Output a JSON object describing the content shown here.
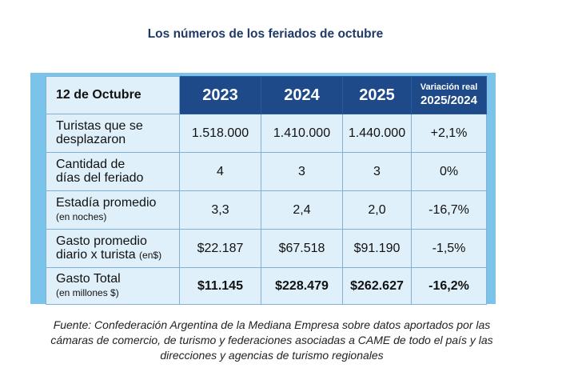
{
  "title": "Los números de los feriados de octubre",
  "table": {
    "corner": "12 de Octubre",
    "years": [
      "2023",
      "2024",
      "2025"
    ],
    "variation_header": {
      "line1": "Variación real",
      "line2": "2025/2024"
    },
    "rows": [
      {
        "label": "Turistas que se",
        "label2": "desplazaron",
        "sub": "",
        "values": [
          "1.518.000",
          "1.410.000",
          "1.440.000",
          "+2,1%"
        ]
      },
      {
        "label": "Cantidad de",
        "label2": "días del feriado",
        "sub": "",
        "values": [
          "4",
          "3",
          "3",
          "0%"
        ]
      },
      {
        "label": "Estadía promedio",
        "label2": "",
        "sub": "(en noches)",
        "values": [
          "3,3",
          "2,4",
          "2,0",
          "-16,7%"
        ]
      },
      {
        "label": "Gasto promedio",
        "label2": "diario x turista",
        "sub": "(en$)",
        "values": [
          "$22.187",
          "$67.518",
          "$91.190",
          "-1,5%"
        ]
      },
      {
        "label": "Gasto Total",
        "label2": "",
        "sub": "(en millones $)",
        "values": [
          "$11.145",
          "$228.479",
          "$262.627",
          "-16,2%"
        ]
      }
    ]
  },
  "source": {
    "line1": "Fuente: Confederación Argentina de la Mediana Empresa sobre datos aportados por las",
    "line2": "cámaras de comercio, de turismo y federaciones asociadas a CAME de todo el país y las",
    "line3": "direcciones y agencias de turismo regionales"
  }
}
